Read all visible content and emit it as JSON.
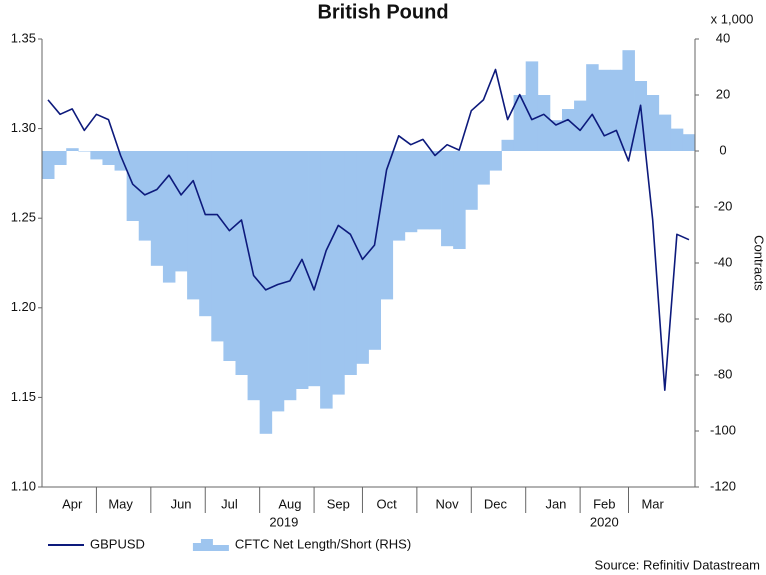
{
  "chart_data": {
    "type": "combo",
    "title": "British Pound",
    "categories": [
      null,
      null,
      "Apr",
      null,
      null,
      null,
      "May",
      null,
      null,
      null,
      null,
      "Jun",
      null,
      null,
      null,
      "Jul",
      null,
      null,
      null,
      null,
      "Aug",
      null,
      null,
      null,
      "Sep",
      null,
      null,
      null,
      "Oct",
      null,
      null,
      null,
      null,
      "Nov",
      null,
      null,
      null,
      "Dec",
      null,
      null,
      null,
      null,
      "Jan",
      null,
      null,
      null,
      "Feb",
      null,
      null,
      null,
      "Mar",
      null,
      null,
      null
    ],
    "years": [
      {
        "label": "2019",
        "from": "Apr",
        "to": "Dec"
      },
      {
        "label": "2020",
        "from": "Jan",
        "to": "Mar"
      }
    ],
    "series": [
      {
        "name": "CFTC Net Length/Short (RHS)",
        "type": "area",
        "axis": "y2",
        "color": "#9ec5ef",
        "values": [
          -10,
          -5,
          1,
          0,
          -3,
          -5,
          -7,
          -25,
          -32,
          -41,
          -47,
          -43,
          -53,
          -59,
          -68,
          -75,
          -80,
          -89,
          -101,
          -93,
          -89,
          -85,
          -84,
          -92,
          -87,
          -80,
          -76,
          -71,
          -53,
          -32,
          -29,
          -28,
          -28,
          -34,
          -35,
          -21,
          -12,
          -7,
          4,
          20,
          32,
          20,
          11,
          15,
          18,
          31,
          29,
          29,
          36,
          25,
          20,
          13,
          8,
          6
        ]
      },
      {
        "name": "GBPUSD",
        "type": "line",
        "color": "#0d1a7c",
        "values": [
          1.316,
          1.308,
          1.311,
          1.299,
          1.308,
          1.305,
          1.285,
          1.269,
          1.263,
          1.266,
          1.274,
          1.263,
          1.271,
          1.252,
          1.252,
          1.243,
          1.249,
          1.218,
          1.21,
          1.213,
          1.215,
          1.227,
          1.21,
          1.232,
          1.246,
          1.241,
          1.227,
          1.235,
          1.277,
          1.296,
          1.291,
          1.294,
          1.285,
          1.291,
          1.288,
          1.31,
          1.316,
          1.333,
          1.305,
          1.319,
          1.305,
          1.308,
          1.302,
          1.305,
          1.299,
          1.308,
          1.296,
          1.299,
          1.282,
          1.313,
          1.249,
          1.154,
          1.241,
          1.238
        ]
      }
    ],
    "ylim": [
      1.1,
      1.35
    ],
    "yticks": [
      {
        "value": 1.1,
        "label": "1.10"
      },
      1.15,
      {
        "value": 1.2,
        "label": "1.20"
      },
      1.25,
      {
        "value": 1.3,
        "label": "1.30"
      },
      1.35
    ],
    "y2lim": [
      -120,
      40
    ],
    "y2ticks": [
      -120,
      -100,
      -80,
      -60,
      -40,
      -20,
      0,
      20,
      40
    ],
    "y2_label": "Contracts",
    "y2_unit": "x 1,000",
    "source": "Source: Refinitiv Datastream"
  }
}
